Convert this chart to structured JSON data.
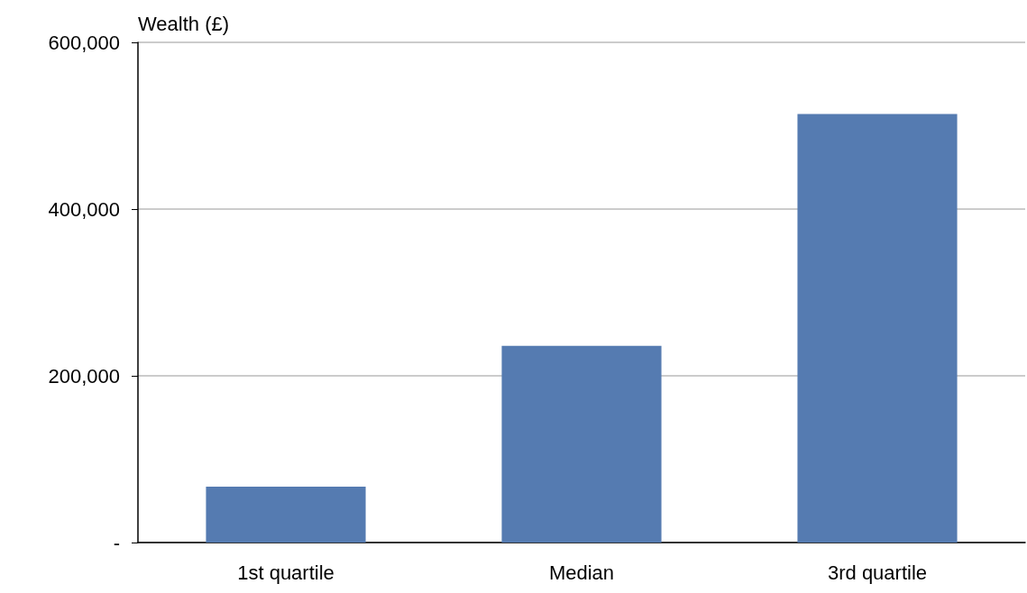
{
  "chart_data": {
    "type": "bar",
    "ylabel": "Wealth (£)",
    "categories": [
      "1st quartile",
      "Median",
      "3rd quartile"
    ],
    "values": [
      67000,
      236000,
      514000
    ],
    "color": "#557bb1",
    "ylim": [
      0,
      600000
    ],
    "yticks": [
      {
        "value": 0,
        "label": "-"
      },
      {
        "value": 200000,
        "label": "200,000"
      },
      {
        "value": 400000,
        "label": "400,000"
      },
      {
        "value": 600000,
        "label": "600,000"
      }
    ],
    "grid": "y"
  }
}
